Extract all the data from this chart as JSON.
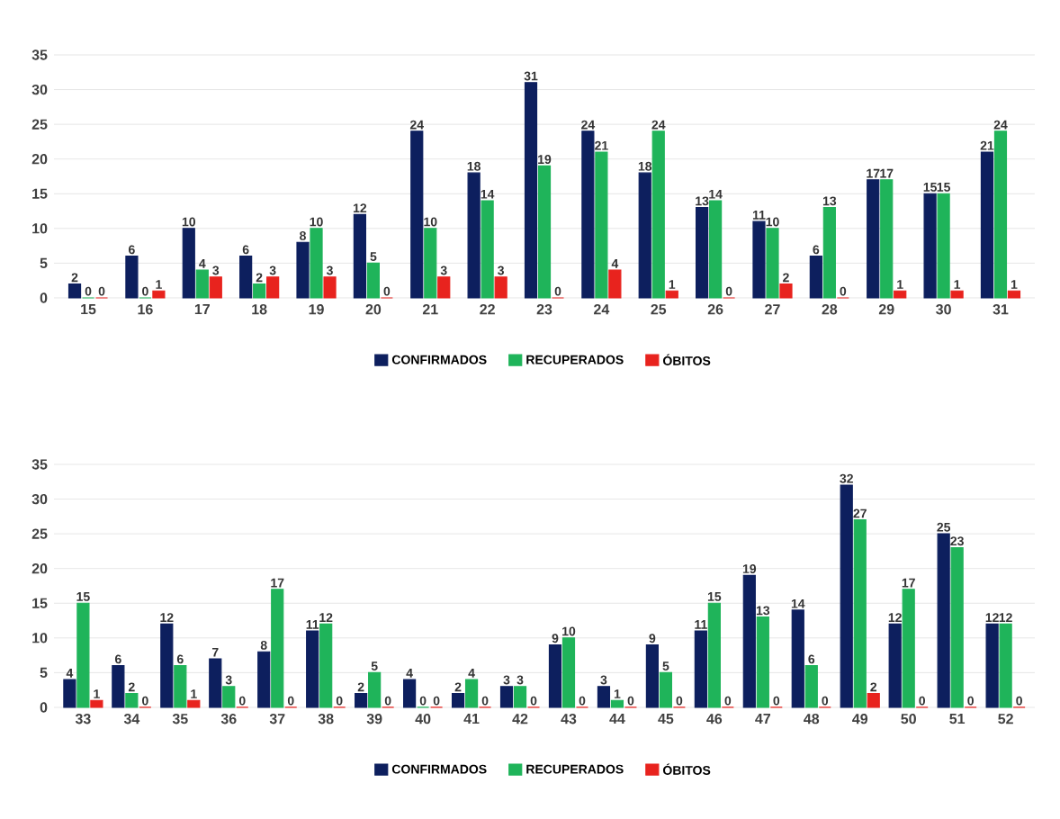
{
  "chart_data": [
    {
      "type": "bar",
      "categories": [
        "15",
        "16",
        "17",
        "18",
        "19",
        "20",
        "21",
        "22",
        "23",
        "24",
        "25",
        "26",
        "27",
        "28",
        "29",
        "30",
        "31"
      ],
      "series": [
        {
          "name": "CONFIRMADOS",
          "color": "#0d1f5e",
          "values": [
            2,
            6,
            10,
            6,
            8,
            12,
            24,
            18,
            31,
            24,
            18,
            13,
            11,
            6,
            17,
            15,
            21
          ]
        },
        {
          "name": "RECUPERADOS",
          "color": "#1fb45a",
          "values": [
            0,
            0,
            4,
            2,
            10,
            5,
            10,
            14,
            19,
            21,
            24,
            14,
            10,
            13,
            17,
            15,
            24
          ]
        },
        {
          "name": "ÓBITOS",
          "color": "#e8231e",
          "values": [
            0,
            1,
            3,
            3,
            3,
            0,
            3,
            3,
            0,
            4,
            1,
            0,
            2,
            0,
            1,
            1,
            1
          ]
        }
      ],
      "ylim": [
        0,
        35
      ],
      "yticks": [
        0,
        5,
        10,
        15,
        20,
        25,
        30,
        35
      ],
      "grid": "y",
      "legend": "bottom",
      "data_labels": true
    },
    {
      "type": "bar",
      "categories": [
        "33",
        "34",
        "35",
        "36",
        "37",
        "38",
        "39",
        "40",
        "41",
        "42",
        "43",
        "44",
        "45",
        "46",
        "47",
        "48",
        "49",
        "50",
        "51",
        "52"
      ],
      "series": [
        {
          "name": "CONFIRMADOS",
          "color": "#0d1f5e",
          "values": [
            4,
            6,
            12,
            7,
            8,
            11,
            2,
            4,
            2,
            3,
            9,
            3,
            9,
            11,
            19,
            14,
            32,
            12,
            25,
            12
          ]
        },
        {
          "name": "RECUPERADOS",
          "color": "#1fb45a",
          "values": [
            15,
            2,
            6,
            3,
            17,
            12,
            5,
            0,
            4,
            3,
            10,
            1,
            5,
            15,
            13,
            6,
            27,
            17,
            23,
            12
          ]
        },
        {
          "name": "ÓBITOS",
          "color": "#e8231e",
          "values": [
            1,
            0,
            1,
            0,
            0,
            0,
            0,
            0,
            0,
            0,
            0,
            0,
            0,
            0,
            0,
            0,
            2,
            0,
            0,
            0
          ]
        }
      ],
      "ylim": [
        0,
        35
      ],
      "yticks": [
        0,
        5,
        10,
        15,
        20,
        25,
        30,
        35
      ],
      "grid": "y",
      "legend": "bottom",
      "data_labels": true
    }
  ]
}
